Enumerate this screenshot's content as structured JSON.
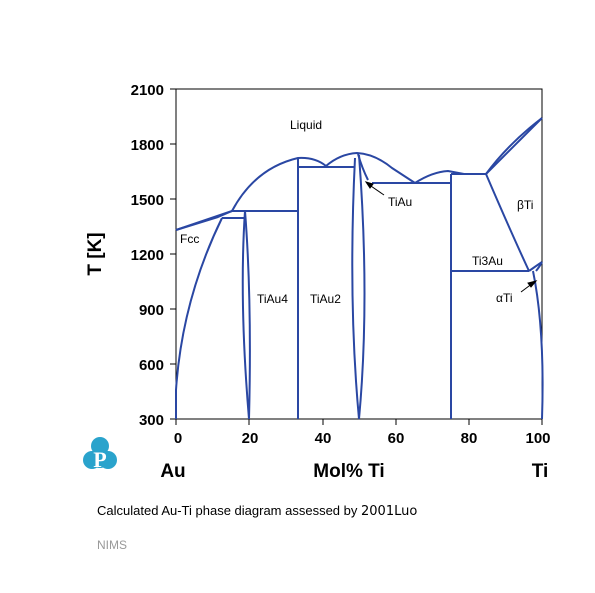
{
  "diagram": {
    "x_axis": {
      "ticks": [
        "0",
        "20",
        "40",
        "60",
        "80",
        "100"
      ],
      "title": "Mol% Ti",
      "left_element": "Au",
      "right_element": "Ti"
    },
    "y_axis": {
      "ticks": [
        "300",
        "600",
        "900",
        "1200",
        "1500",
        "1800",
        "2100"
      ],
      "title": "T [K]"
    },
    "phases": {
      "liquid": "Liquid",
      "fcc": "Fcc",
      "tiau4": "TiAu4",
      "tiau2": "TiAu2",
      "tiau": "TiAu",
      "ti3au": "Ti3Au",
      "beta_ti": "βTi",
      "alpha_ti": "αTi"
    },
    "colors": {
      "line": "#2a47a3",
      "axis": "#000000"
    }
  },
  "logo": {
    "icon": "p-logo-icon",
    "color": "#2aa3cc"
  },
  "caption": {
    "text": "Calculated Au-Ti phase diagram assessed by ",
    "source": "2001Luo"
  },
  "footer": {
    "text": "NIMS"
  }
}
